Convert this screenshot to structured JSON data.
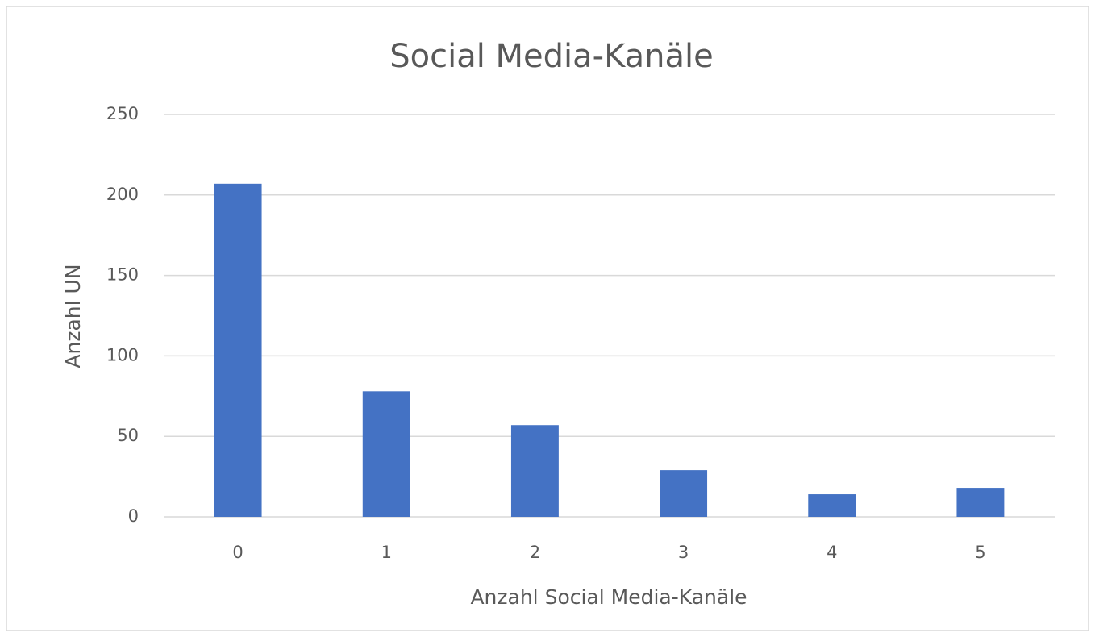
{
  "chart_data": {
    "type": "bar",
    "title": "Social Media-Kanäle",
    "x_label": "Anzahl Social Media-Kanäle",
    "y_label": "Anzahl UN",
    "categories": [
      "0",
      "1",
      "2",
      "3",
      "4",
      "5"
    ],
    "values": [
      207,
      78,
      57,
      29,
      14,
      18
    ],
    "color": "#4472c4",
    "ylim": [
      0,
      250
    ],
    "yticks": [
      0,
      50,
      100,
      150,
      200,
      250
    ],
    "grid": true
  }
}
